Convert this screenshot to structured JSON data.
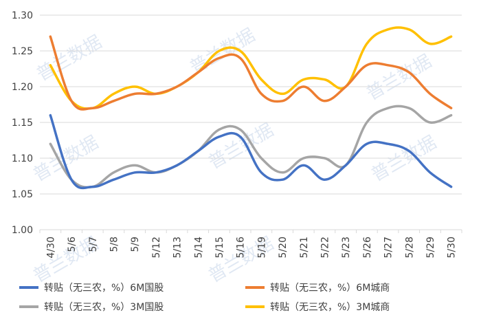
{
  "chart_data": {
    "type": "line",
    "categories": [
      "4/30",
      "5/6",
      "5/7",
      "5/8",
      "5/9",
      "5/12",
      "5/13",
      "5/14",
      "5/15",
      "5/16",
      "5/19",
      "5/20",
      "5/21",
      "5/22",
      "5/23",
      "5/26",
      "5/27",
      "5/28",
      "5/29",
      "5/30"
    ],
    "ylim": [
      1.0,
      1.3
    ],
    "yticks": [
      "1.00",
      "1.05",
      "1.10",
      "1.15",
      "1.20",
      "1.25",
      "1.30"
    ],
    "grid": true,
    "legend_position": "bottom",
    "series": [
      {
        "name": "转贴（无三农，%）6M国股",
        "color": "#4472C4",
        "values": [
          1.16,
          1.07,
          1.06,
          1.07,
          1.08,
          1.08,
          1.09,
          1.11,
          1.13,
          1.13,
          1.08,
          1.07,
          1.09,
          1.07,
          1.09,
          1.12,
          1.12,
          1.11,
          1.08,
          1.06
        ]
      },
      {
        "name": "转贴（无三农，%）6M城商",
        "color": "#ED7D31",
        "values": [
          1.27,
          1.18,
          1.17,
          1.18,
          1.19,
          1.19,
          1.2,
          1.22,
          1.24,
          1.24,
          1.19,
          1.18,
          1.2,
          1.18,
          1.2,
          1.23,
          1.23,
          1.22,
          1.19,
          1.17
        ]
      },
      {
        "name": "转贴（无三农，%）3M国股",
        "color": "#A5A5A5",
        "values": [
          1.12,
          1.07,
          1.06,
          1.08,
          1.09,
          1.08,
          1.09,
          1.11,
          1.14,
          1.14,
          1.1,
          1.08,
          1.1,
          1.1,
          1.09,
          1.15,
          1.17,
          1.17,
          1.15,
          1.16
        ]
      },
      {
        "name": "转贴（无三农，%）3M城商",
        "color": "#FFC000",
        "values": [
          1.23,
          1.18,
          1.17,
          1.19,
          1.2,
          1.19,
          1.2,
          1.22,
          1.25,
          1.25,
          1.21,
          1.19,
          1.21,
          1.21,
          1.2,
          1.26,
          1.28,
          1.28,
          1.26,
          1.27
        ]
      }
    ]
  },
  "watermark": {
    "text": "普兰数据"
  }
}
